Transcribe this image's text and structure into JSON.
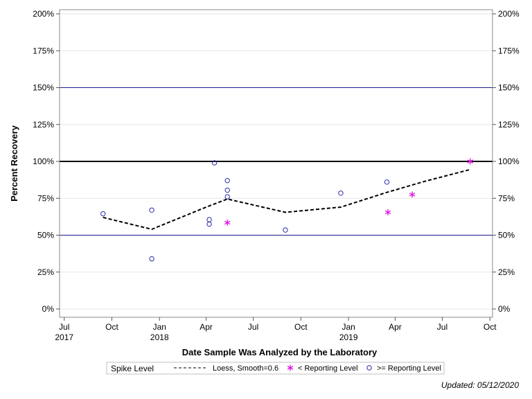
{
  "chart_data": {
    "type": "scatter",
    "ylabel": "Percent Recovery",
    "xlabel": "Date Sample Was Analyzed by the Laboratory",
    "ylim": [
      0,
      200
    ],
    "y_ticks": [
      0,
      25,
      50,
      75,
      100,
      125,
      150,
      175,
      200
    ],
    "y_tick_labels": [
      "0%",
      "25%",
      "50%",
      "75%",
      "100%",
      "125%",
      "150%",
      "175%",
      "200%"
    ],
    "xlim": [
      "2017-06-22",
      "2019-10-06"
    ],
    "x_ticks": [
      {
        "date": "2017-07-01",
        "label": "Jul",
        "year": "2017"
      },
      {
        "date": "2017-10-01",
        "label": "Oct",
        "year": ""
      },
      {
        "date": "2018-01-01",
        "label": "Jan",
        "year": "2018"
      },
      {
        "date": "2018-04-01",
        "label": "Apr",
        "year": ""
      },
      {
        "date": "2018-07-01",
        "label": "Jul",
        "year": ""
      },
      {
        "date": "2018-10-01",
        "label": "Oct",
        "year": ""
      },
      {
        "date": "2019-01-01",
        "label": "Jan",
        "year": "2019"
      },
      {
        "date": "2019-04-01",
        "label": "Apr",
        "year": ""
      },
      {
        "date": "2019-07-01",
        "label": "Jul",
        "year": ""
      },
      {
        "date": "2019-10-01",
        "label": "Oct",
        "year": ""
      }
    ],
    "reference_lines": [
      {
        "y": 150,
        "color": "#1a1a8c",
        "weight": "thin"
      },
      {
        "y": 100,
        "color": "#000000",
        "weight": "thick"
      },
      {
        "y": 50,
        "color": "#1a1a8c",
        "weight": "thin"
      }
    ],
    "grid": true,
    "series": [
      {
        "name": "Loess, Smooth=0.6",
        "kind": "line",
        "style": "dashed",
        "color": "#000000",
        "points": [
          {
            "x": "2017-09-14",
            "y": 62
          },
          {
            "x": "2017-12-17",
            "y": 54
          },
          {
            "x": "2018-04-01",
            "y": 69
          },
          {
            "x": "2018-05-12",
            "y": 74.5
          },
          {
            "x": "2018-09-01",
            "y": 65.5
          },
          {
            "x": "2018-12-17",
            "y": 69
          },
          {
            "x": "2019-03-16",
            "y": 79
          },
          {
            "x": "2019-05-28",
            "y": 86.5
          },
          {
            "x": "2019-08-24",
            "y": 94.5
          }
        ]
      },
      {
        "name": "< Reporting Level",
        "kind": "marker",
        "marker": "asterisk",
        "color": "#e010e0",
        "points": [
          {
            "x": "2018-05-12",
            "y": 58.5
          },
          {
            "x": "2019-03-18",
            "y": 65.5
          },
          {
            "x": "2019-05-04",
            "y": 77.5
          },
          {
            "x": "2019-08-24",
            "y": 100
          }
        ]
      },
      {
        "name": ">= Reporting Level",
        "kind": "marker",
        "marker": "circle",
        "color": "#2a2aa8",
        "points": [
          {
            "x": "2017-09-14",
            "y": 64.5
          },
          {
            "x": "2017-12-17",
            "y": 67
          },
          {
            "x": "2017-12-17",
            "y": 34
          },
          {
            "x": "2018-04-07",
            "y": 60.5
          },
          {
            "x": "2018-04-07",
            "y": 57.5
          },
          {
            "x": "2018-04-17",
            "y": 99
          },
          {
            "x": "2018-05-12",
            "y": 87
          },
          {
            "x": "2018-05-12",
            "y": 80.5
          },
          {
            "x": "2018-05-12",
            "y": 76
          },
          {
            "x": "2018-09-01",
            "y": 53.5
          },
          {
            "x": "2018-12-17",
            "y": 78.5
          },
          {
            "x": "2019-03-16",
            "y": 86
          }
        ]
      }
    ],
    "legend": {
      "title": "Spike Level",
      "position": "bottom",
      "entries": [
        "Loess, Smooth=0.6",
        "< Reporting Level",
        ">= Reporting Level"
      ]
    },
    "footnote": "Updated: 05/12/2020"
  }
}
